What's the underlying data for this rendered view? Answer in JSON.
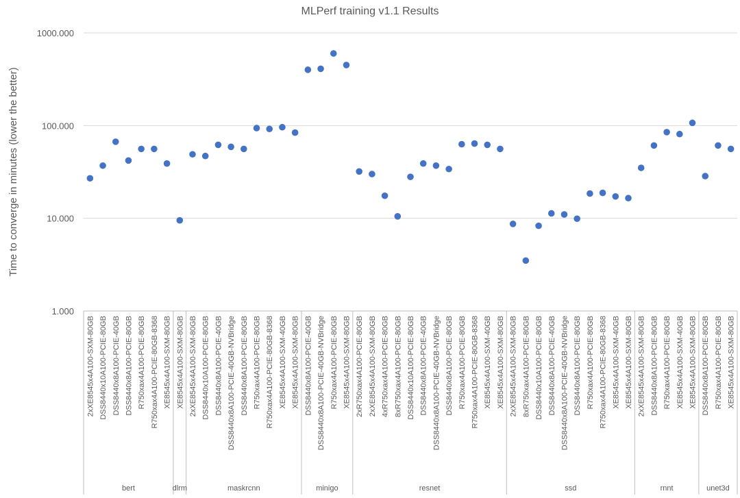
{
  "chart_data": {
    "type": "scatter",
    "title": "MLPerf training v1.1 Results",
    "ylabel": "Time to converge in minutes (lower the better)",
    "xlabel": "",
    "yscale": "log",
    "ylim": [
      1,
      1000
    ],
    "yticks": [
      "1.000",
      "10.000",
      "100.000",
      "1000.000"
    ],
    "grid": true,
    "legend": "none",
    "marker_color": "#4472c4",
    "groups": [
      {
        "name": "bert",
        "points": [
          {
            "label": "2xXE8545x4A100-SXM-80GB",
            "value": 27
          },
          {
            "label": "DSS8440x10A100-PCIE-80GB",
            "value": 37
          },
          {
            "label": "DSS8440x8A100-PCIE-40GB",
            "value": 67
          },
          {
            "label": "DSS8440x8A100-PCIE-80GB",
            "value": 42
          },
          {
            "label": "R750xax4A100-PCIE-80GB",
            "value": 56
          },
          {
            "label": "R750xax4A100-PCIE-80GB-8368",
            "value": 56
          },
          {
            "label": "XE8545x4A100-SXM-80GB",
            "value": 39
          }
        ]
      },
      {
        "name": "dlrm",
        "points": [
          {
            "label": "XE8545x4A100-SXM-80GB",
            "value": 9.5
          }
        ]
      },
      {
        "name": "maskrcnn",
        "points": [
          {
            "label": "2xXE8545x4A100-SXM-80GB",
            "value": 49
          },
          {
            "label": "DSS8440x10A100-PCIE-80GB",
            "value": 47
          },
          {
            "label": "DSS8440x8A100-PCIE-40GB",
            "value": 62
          },
          {
            "label": "DSS8440x8A100-PCIE-40GB-NVBridge",
            "value": 59
          },
          {
            "label": "DSS8440x8A100-PCIE-80GB",
            "value": 56
          },
          {
            "label": "R750xax4A100-PCIE-80GB",
            "value": 94
          },
          {
            "label": "R750xax4A100-PCIE-80GB-8368",
            "value": 92
          },
          {
            "label": "XE8545x4A100-SXM-40GB",
            "value": 96
          },
          {
            "label": "XE8545x4A100-SXM-80GB",
            "value": 84
          }
        ]
      },
      {
        "name": "minigo",
        "points": [
          {
            "label": "DSS8440x8A100-PCIE-40GB",
            "value": 400
          },
          {
            "label": "DSS8440x8A100-PCIE-40GB-NVBridge",
            "value": 410
          },
          {
            "label": "R750xax4A100-PCIE-80GB",
            "value": 600
          },
          {
            "label": "XE8545x4A100-SXM-80GB",
            "value": 450
          }
        ]
      },
      {
        "name": "resnet",
        "points": [
          {
            "label": "2xR750xax4A100-PCIE-80GB",
            "value": 32
          },
          {
            "label": "2xXE8545x4A100-SXM-80GB",
            "value": 30
          },
          {
            "label": "4xR750xax4A100-PCIE-80GB",
            "value": 17.5
          },
          {
            "label": "8xR750xax4A100-PCIE-80GB",
            "value": 10.5
          },
          {
            "label": "DSS8440x10A100-PCIE-80GB",
            "value": 28
          },
          {
            "label": "DSS8440x8A100-PCIE-40GB",
            "value": 39
          },
          {
            "label": "DSS8440x8A100-PCIE-40GB-NVBridge",
            "value": 37
          },
          {
            "label": "DSS8440x8A100-PCIE-80GB",
            "value": 34
          },
          {
            "label": "R750xax4A100-PCIE-80GB",
            "value": 63
          },
          {
            "label": "R750xax4A100-PCIE-80GB-8368",
            "value": 64
          },
          {
            "label": "XE8545x4A100-SXM-40GB",
            "value": 62
          },
          {
            "label": "XE8545x4A100-SXM-80GB",
            "value": 56
          }
        ]
      },
      {
        "name": "ssd",
        "points": [
          {
            "label": "2xXE8545x4A100-SXM-80GB",
            "value": 8.7
          },
          {
            "label": "8xR750xax4A100-PCIE-80GB",
            "value": 3.5
          },
          {
            "label": "DSS8440x10A100-PCIE-80GB",
            "value": 8.3
          },
          {
            "label": "DSS8440x8A100-PCIE-40GB",
            "value": 11.3
          },
          {
            "label": "DSS8440x8A100-PCIE-40GB-NVBridge",
            "value": 11
          },
          {
            "label": "DSS8440x8A100-PCIE-80GB",
            "value": 9.9
          },
          {
            "label": "R750xax4A100-PCIE-80GB",
            "value": 18.5
          },
          {
            "label": "R750xax4A100-PCIE-80GB-8368",
            "value": 18.8
          },
          {
            "label": "XE8545x4A100-SXM-40GB",
            "value": 17.2
          },
          {
            "label": "XE8545x4A100-SXM-80GB",
            "value": 16.5
          }
        ]
      },
      {
        "name": "rnnt",
        "points": [
          {
            "label": "2xXE8545x4A100-SXM-80GB",
            "value": 35
          },
          {
            "label": "DSS8440x8A100-PCIE-80GB",
            "value": 61
          },
          {
            "label": "R750xax4A100-PCIE-80GB",
            "value": 85
          },
          {
            "label": "XE8545x4A100-SXM-40GB",
            "value": 81
          },
          {
            "label": "XE8545x4A100-SXM-80GB",
            "value": 107
          }
        ]
      },
      {
        "name": "unet3d",
        "points": [
          {
            "label": "DSS8440x8A100-PCIE-80GB",
            "value": 28.5
          },
          {
            "label": "R750xax4A100-PCIE-80GB",
            "value": 61
          },
          {
            "label": "XE8545x4A100-SXM-80GB",
            "value": 56
          }
        ]
      }
    ]
  }
}
